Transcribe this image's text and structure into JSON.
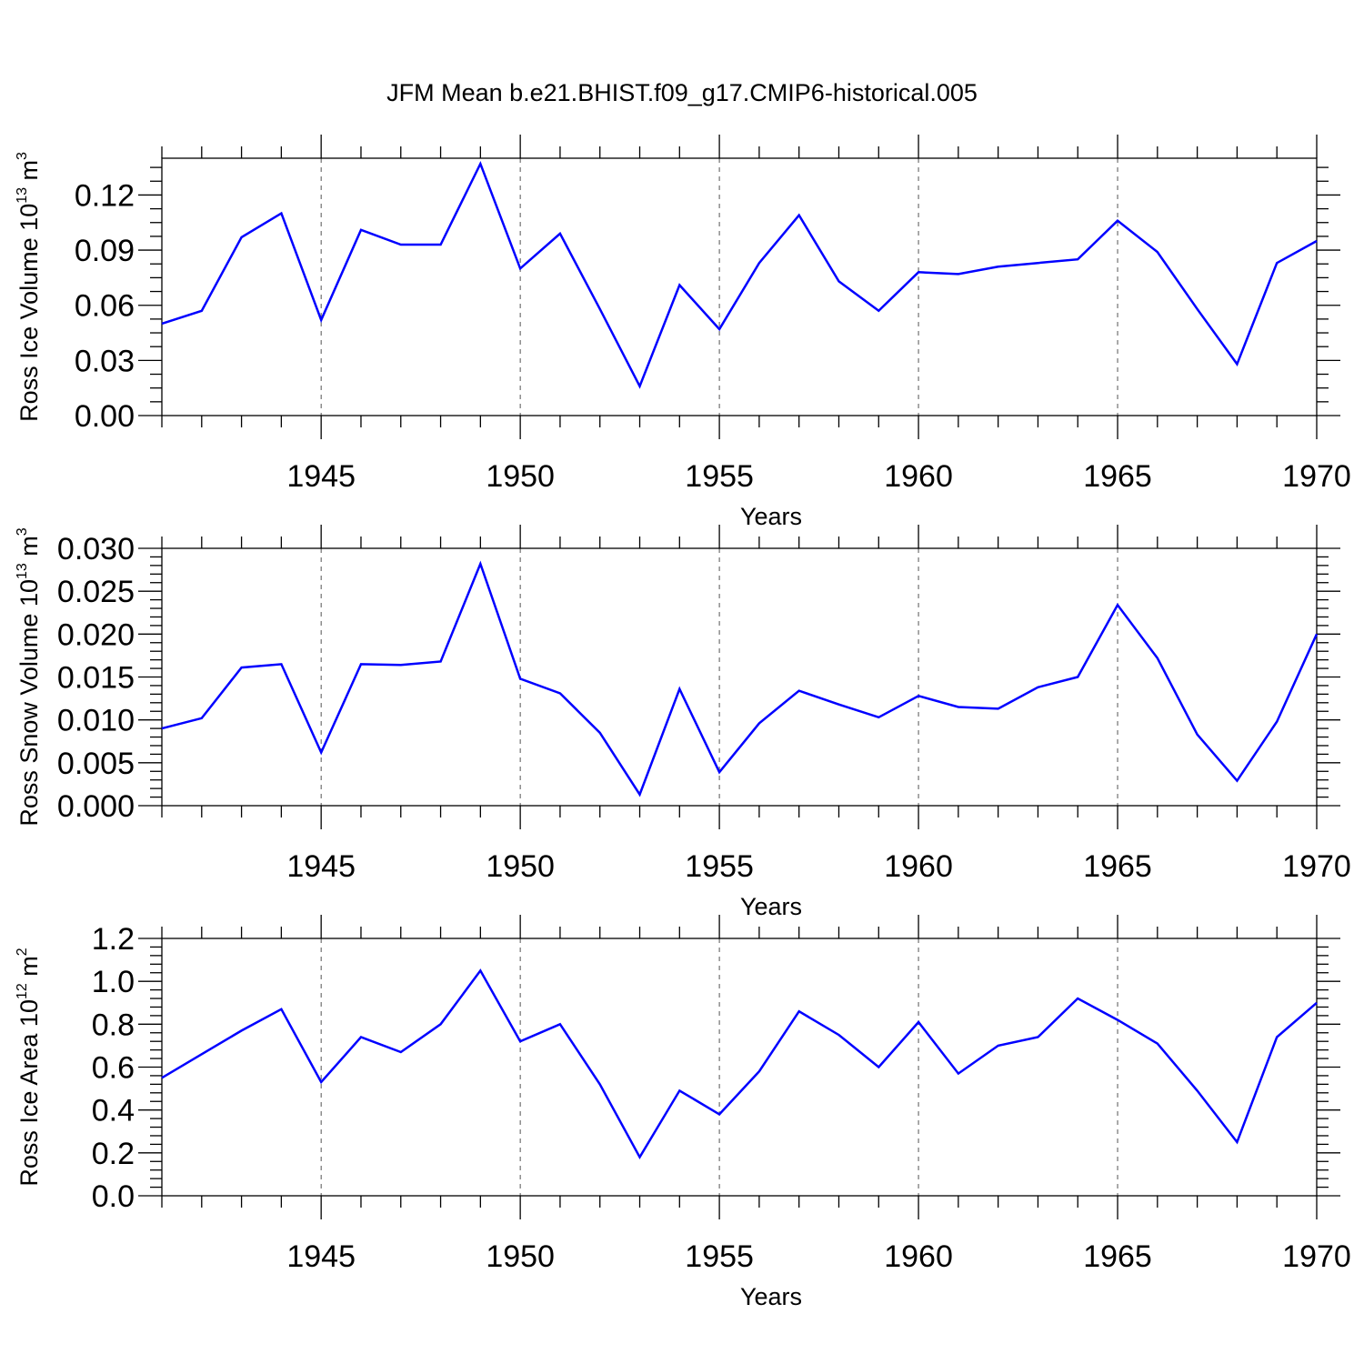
{
  "title": "JFM Mean b.e21.BHIST.f09_g17.CMIP6-historical.005",
  "colors": {
    "line": "#0000ff",
    "axis": "#000000",
    "grid": "#555555"
  },
  "chart_data": [
    {
      "type": "line",
      "xlabel": "Years",
      "ylabel_text": "Ross Ice Volume 10",
      "ylabel_exp": "13",
      "ylabel_unit": " m",
      "ylabel_unit_exp": "3",
      "xlim": [
        1941,
        1970
      ],
      "ylim": [
        0,
        0.14
      ],
      "yticks": [
        0,
        0.03,
        0.06,
        0.09,
        0.12
      ],
      "ytick_labels": [
        "0.00",
        "0.03",
        "0.06",
        "0.09",
        "0.12"
      ],
      "xticks": [
        1945,
        1950,
        1955,
        1960,
        1965,
        1970
      ],
      "xtick_labels": [
        "1945",
        "1950",
        "1955",
        "1960",
        "1965",
        "1970"
      ],
      "grid": "vertical-dashed",
      "x": [
        1941,
        1942,
        1943,
        1944,
        1945,
        1946,
        1947,
        1948,
        1949,
        1950,
        1951,
        1952,
        1953,
        1954,
        1955,
        1956,
        1957,
        1958,
        1959,
        1960,
        1961,
        1962,
        1963,
        1964,
        1965,
        1966,
        1967,
        1968,
        1969,
        1970
      ],
      "values": [
        0.05,
        0.057,
        0.097,
        0.11,
        0.052,
        0.101,
        0.093,
        0.093,
        0.137,
        0.08,
        0.099,
        0.058,
        0.016,
        0.071,
        0.047,
        0.083,
        0.109,
        0.073,
        0.057,
        0.078,
        0.077,
        0.081,
        0.083,
        0.085,
        0.106,
        0.089,
        0.058,
        0.028,
        0.083,
        0.095
      ]
    },
    {
      "type": "line",
      "xlabel": "Years",
      "ylabel_text": "Ross Snow Volume 10",
      "ylabel_exp": "13",
      "ylabel_unit": " m",
      "ylabel_unit_exp": "3",
      "xlim": [
        1941,
        1970
      ],
      "ylim": [
        0,
        0.03
      ],
      "yticks": [
        0,
        0.005,
        0.01,
        0.015,
        0.02,
        0.025,
        0.03
      ],
      "ytick_labels": [
        "0.000",
        "0.005",
        "0.010",
        "0.015",
        "0.020",
        "0.025",
        "0.030"
      ],
      "xticks": [
        1945,
        1950,
        1955,
        1960,
        1965,
        1970
      ],
      "xtick_labels": [
        "1945",
        "1950",
        "1955",
        "1960",
        "1965",
        "1970"
      ],
      "grid": "vertical-dashed",
      "x": [
        1941,
        1942,
        1943,
        1944,
        1945,
        1946,
        1947,
        1948,
        1949,
        1950,
        1951,
        1952,
        1953,
        1954,
        1955,
        1956,
        1957,
        1958,
        1959,
        1960,
        1961,
        1962,
        1963,
        1964,
        1965,
        1966,
        1967,
        1968,
        1969,
        1970
      ],
      "values": [
        0.009,
        0.0102,
        0.0161,
        0.0165,
        0.0062,
        0.0165,
        0.0164,
        0.0168,
        0.0282,
        0.0148,
        0.0131,
        0.0085,
        0.0013,
        0.0136,
        0.0039,
        0.0096,
        0.0134,
        0.0118,
        0.0103,
        0.0128,
        0.0115,
        0.0113,
        0.0138,
        0.015,
        0.0234,
        0.0172,
        0.0083,
        0.0029,
        0.0098,
        0.02
      ]
    },
    {
      "type": "line",
      "xlabel": "Years",
      "ylabel_text": "Ross Ice Area 10",
      "ylabel_exp": "12",
      "ylabel_unit": " m",
      "ylabel_unit_exp": "2",
      "xlim": [
        1941,
        1970
      ],
      "ylim": [
        0,
        1.2
      ],
      "yticks": [
        0,
        0.2,
        0.4,
        0.6,
        0.8,
        1.0,
        1.2
      ],
      "ytick_labels": [
        "0.0",
        "0.2",
        "0.4",
        "0.6",
        "0.8",
        "1.0",
        "1.2"
      ],
      "xticks": [
        1945,
        1950,
        1955,
        1960,
        1965,
        1970
      ],
      "xtick_labels": [
        "1945",
        "1950",
        "1955",
        "1960",
        "1965",
        "1970"
      ],
      "grid": "vertical-dashed",
      "x": [
        1941,
        1942,
        1943,
        1944,
        1945,
        1946,
        1947,
        1948,
        1949,
        1950,
        1951,
        1952,
        1953,
        1954,
        1955,
        1956,
        1957,
        1958,
        1959,
        1960,
        1961,
        1962,
        1963,
        1964,
        1965,
        1966,
        1967,
        1968,
        1969,
        1970
      ],
      "values": [
        0.55,
        0.66,
        0.77,
        0.87,
        0.53,
        0.74,
        0.67,
        0.8,
        1.05,
        0.72,
        0.8,
        0.52,
        0.18,
        0.49,
        0.38,
        0.58,
        0.86,
        0.75,
        0.6,
        0.81,
        0.57,
        0.7,
        0.74,
        0.92,
        0.82,
        0.71,
        0.49,
        0.25,
        0.74,
        0.9
      ]
    }
  ]
}
